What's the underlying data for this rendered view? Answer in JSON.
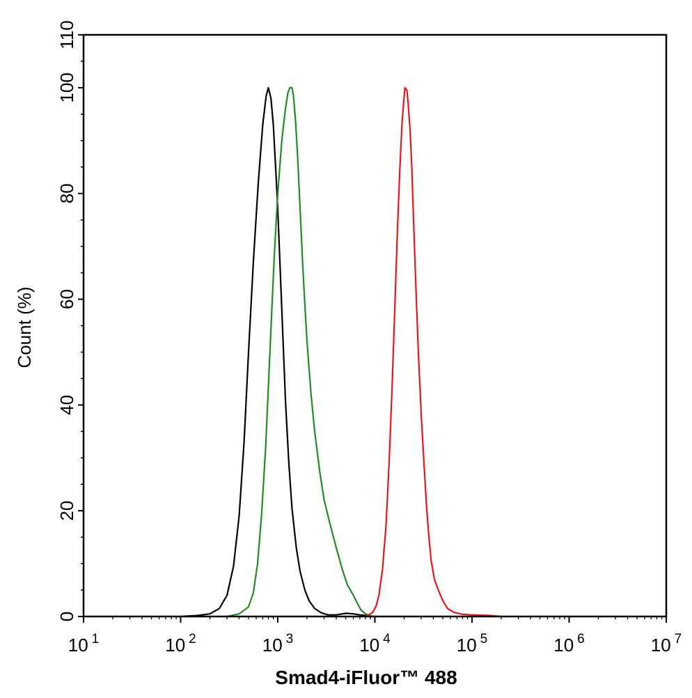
{
  "chart_data": {
    "type": "line",
    "title": "",
    "xlabel": "Smad4-iFluor™ 488",
    "ylabel": "Count  (%)",
    "x_scale": "log",
    "xlim": [
      10,
      10000000
    ],
    "ylim": [
      0,
      110
    ],
    "grid": false,
    "x_ticks": [
      {
        "base": "10",
        "exp": "1"
      },
      {
        "base": "10",
        "exp": "2"
      },
      {
        "base": "10",
        "exp": "3"
      },
      {
        "base": "10",
        "exp": "4"
      },
      {
        "base": "10",
        "exp": "5"
      },
      {
        "base": "10",
        "exp": "6"
      },
      {
        "base": "10",
        "exp": "7"
      }
    ],
    "y_ticks": [
      "0",
      "20",
      "40",
      "60",
      "80",
      "100",
      "110"
    ],
    "series": [
      {
        "color": "#000000",
        "points": [
          [
            100,
            0
          ],
          [
            150,
            0.2
          ],
          [
            200,
            0.5
          ],
          [
            250,
            1.5
          ],
          [
            300,
            4
          ],
          [
            350,
            9.5
          ],
          [
            400,
            19
          ],
          [
            450,
            33
          ],
          [
            500,
            50
          ],
          [
            560,
            67
          ],
          [
            630,
            82
          ],
          [
            700,
            93
          ],
          [
            760,
            98.5
          ],
          [
            800,
            100
          ],
          [
            850,
            98
          ],
          [
            900,
            93
          ],
          [
            950,
            85
          ],
          [
            1000,
            77
          ],
          [
            1100,
            58
          ],
          [
            1200,
            41
          ],
          [
            1300,
            29
          ],
          [
            1400,
            20.5
          ],
          [
            1550,
            13
          ],
          [
            1700,
            8.5
          ],
          [
            1900,
            5
          ],
          [
            2100,
            3
          ],
          [
            2400,
            1.5
          ],
          [
            2800,
            0.7
          ],
          [
            3300,
            0.3
          ],
          [
            4000,
            0.3
          ],
          [
            5000,
            0.6
          ],
          [
            6000,
            0.5
          ],
          [
            7000,
            0.3
          ],
          [
            8000,
            0.2
          ],
          [
            9000,
            0
          ]
        ]
      },
      {
        "color": "#228b22",
        "points": [
          [
            300,
            0
          ],
          [
            400,
            0.5
          ],
          [
            500,
            1.8
          ],
          [
            560,
            4.5
          ],
          [
            620,
            10
          ],
          [
            680,
            19
          ],
          [
            750,
            32
          ],
          [
            830,
            50
          ],
          [
            920,
            68
          ],
          [
            1000,
            80
          ],
          [
            1100,
            90
          ],
          [
            1200,
            96
          ],
          [
            1270,
            99
          ],
          [
            1330,
            100
          ],
          [
            1400,
            100
          ],
          [
            1450,
            98.5
          ],
          [
            1520,
            94
          ],
          [
            1600,
            87
          ],
          [
            1700,
            77
          ],
          [
            1800,
            67
          ],
          [
            1900,
            59
          ],
          [
            2000,
            52
          ],
          [
            2200,
            42
          ],
          [
            2400,
            35
          ],
          [
            2700,
            27.5
          ],
          [
            3000,
            22
          ],
          [
            3400,
            18
          ],
          [
            4000,
            13
          ],
          [
            4600,
            9
          ],
          [
            5200,
            6
          ],
          [
            6000,
            4
          ],
          [
            6600,
            2.5
          ],
          [
            7200,
            1.2
          ],
          [
            8000,
            0.5
          ],
          [
            9000,
            0.1
          ],
          [
            10000,
            0
          ]
        ]
      },
      {
        "color": "#e8141a",
        "points": [
          [
            7500,
            0
          ],
          [
            8500,
            0.2
          ],
          [
            9500,
            0.8
          ],
          [
            10300,
            2
          ],
          [
            11000,
            4
          ],
          [
            12000,
            9
          ],
          [
            13000,
            17
          ],
          [
            14000,
            29
          ],
          [
            15000,
            43
          ],
          [
            16000,
            58
          ],
          [
            17000,
            72
          ],
          [
            18000,
            84
          ],
          [
            19000,
            93
          ],
          [
            19800,
            97.5
          ],
          [
            20400,
            100
          ],
          [
            21400,
            99.5
          ],
          [
            22000,
            97
          ],
          [
            23000,
            92
          ],
          [
            24000,
            85
          ],
          [
            25000,
            75
          ],
          [
            26500,
            62
          ],
          [
            28000,
            50
          ],
          [
            30000,
            38
          ],
          [
            32000,
            29
          ],
          [
            34000,
            21
          ],
          [
            36000,
            15
          ],
          [
            38000,
            10.5
          ],
          [
            41000,
            7
          ],
          [
            45000,
            5
          ],
          [
            50000,
            3
          ],
          [
            56000,
            1.5
          ],
          [
            65000,
            0.8
          ],
          [
            80000,
            0.4
          ],
          [
            100000,
            0.3
          ],
          [
            150000,
            0.2
          ],
          [
            200000,
            0
          ]
        ]
      }
    ]
  }
}
